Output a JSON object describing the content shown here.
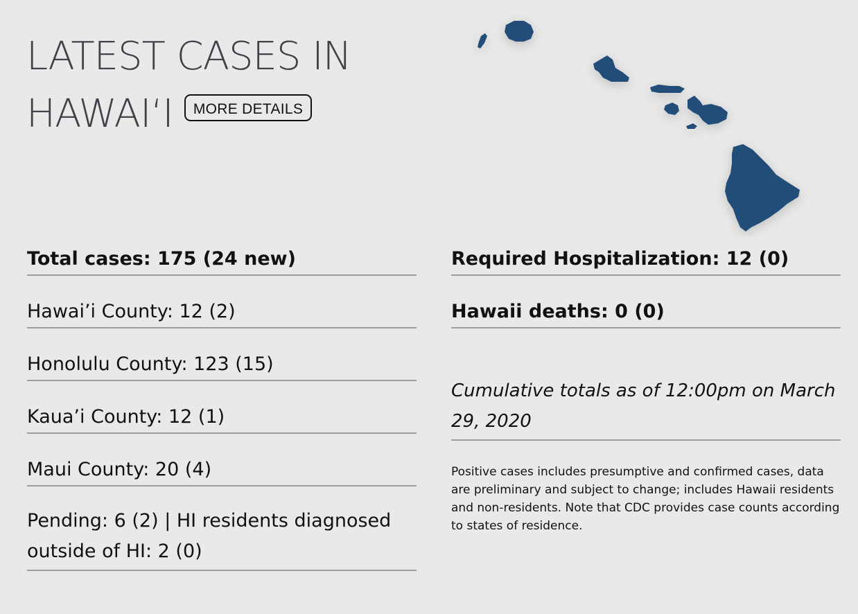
{
  "header": {
    "title_line1": "LATEST CASES IN",
    "title_line2": "HAWAIʻI",
    "more_button": "MORE DETAILS"
  },
  "colors": {
    "background": "#e8e9e8",
    "map_fill": "#234e79",
    "title_text": "#3f4349",
    "divider": "#9a9c9d"
  },
  "stats_left": {
    "total": "Total cases: 175 (24 new)",
    "hawaii_county": "Hawai’i County: 12 (2)",
    "honolulu_county": "Honolulu County: 123 (15)",
    "kauai_county": "Kaua’i County: 12 (1)",
    "maui_county": "Maui County: 20 (4)",
    "pending": "Pending: 6 (2) | HI residents diagnosed outside of HI: 2 (0)"
  },
  "stats_right": {
    "hospitalization": "Required Hospitalization: 12 (0)",
    "deaths": "Hawaii deaths: 0 (0)",
    "as_of": "Cumulative totals as of 12:00pm on March 29, 2020",
    "note": "Positive cases includes presumptive and confirmed cases, data are preliminary and subject to change; includes Hawaii residents and non-residents. Note that CDC provides case counts according to states of residence."
  },
  "map": {
    "icon": "hawaii-islands-map",
    "islands": [
      "niihau",
      "kauai",
      "oahu",
      "molokai",
      "lanai",
      "maui",
      "kahoolawe",
      "hawaii"
    ]
  }
}
